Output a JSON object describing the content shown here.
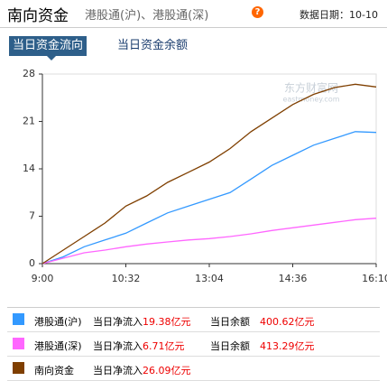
{
  "header": {
    "title": "南向资金",
    "subtitle": "港股通(沪)、港股通(深)",
    "help_icon": "?",
    "date": "数据日期：10-10"
  },
  "tabs": [
    "当日资金流向",
    "当日资金余额"
  ],
  "chart_data": {
    "type": "line",
    "watermark": [
      "东方财富网",
      "eastmoney.com"
    ],
    "x": [
      0,
      23,
      46,
      69,
      92,
      115,
      138,
      161,
      184,
      207,
      230,
      253,
      276,
      299,
      322,
      345,
      368
    ],
    "xlim": [
      0,
      368
    ],
    "xticks": [
      {
        "value": 0,
        "label": "9:00"
      },
      {
        "value": 92,
        "label": "10:32"
      },
      {
        "value": 184,
        "label": "13:04"
      },
      {
        "value": 276,
        "label": "14:36"
      },
      {
        "value": 368,
        "label": "16:10"
      }
    ],
    "ylim": [
      0,
      28
    ],
    "yticks": [
      0,
      7,
      14,
      21,
      28
    ],
    "series": [
      {
        "name": "港股通(沪)",
        "color": "#3399ff",
        "values": [
          0,
          1,
          2.5,
          3.5,
          4.5,
          6,
          7.5,
          8.5,
          9.5,
          10.5,
          12.5,
          14.5,
          16,
          17.5,
          18.5,
          19.5,
          19.38
        ]
      },
      {
        "name": "港股通(深)",
        "color": "#ff66ff",
        "values": [
          0,
          0.8,
          1.6,
          2,
          2.5,
          2.9,
          3.2,
          3.5,
          3.7,
          4,
          4.4,
          4.9,
          5.3,
          5.7,
          6.1,
          6.5,
          6.71
        ]
      },
      {
        "name": "南向资金",
        "color": "#7f3f00",
        "values": [
          0,
          2,
          4,
          6,
          8.5,
          10,
          12,
          13.5,
          15,
          17,
          19.5,
          21.5,
          23.5,
          25,
          26,
          26.5,
          26.09
        ]
      }
    ]
  },
  "legend_table": {
    "rows": [
      [
        "港股通(沪)",
        "当日净流入",
        "19.38亿元",
        "当日余额",
        "400.62亿元"
      ],
      [
        "港股通(深)",
        "当日净流入",
        "6.71亿元",
        "当日余额",
        "413.29亿元"
      ],
      [
        "南向资金",
        "当日净流入",
        "26.09亿元"
      ]
    ]
  }
}
